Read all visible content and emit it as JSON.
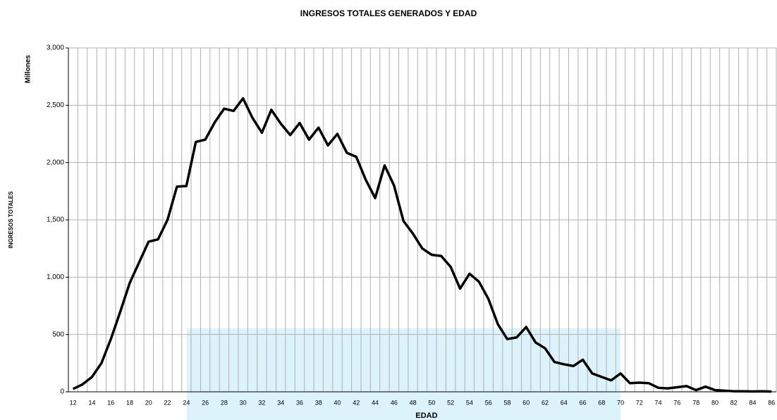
{
  "chart_data": {
    "type": "line",
    "title": "INGRESOS TOTALES GENERADOS Y EDAD",
    "y_axis_label": "INGRESOS TOTALES",
    "y_unit_label": "Millones",
    "x_axis_label": "EDAD",
    "categories": [
      "12",
      null,
      "14",
      null,
      "16",
      null,
      "18",
      null,
      "20",
      null,
      "22",
      null,
      "24",
      null,
      "26",
      null,
      "28",
      null,
      "30",
      null,
      "32",
      null,
      "34",
      null,
      "36",
      null,
      "38",
      null,
      "40",
      null,
      "42",
      null,
      "44",
      null,
      "46",
      null,
      "48",
      null,
      "50",
      null,
      "52",
      null,
      "54",
      null,
      "56",
      null,
      "58",
      null,
      "60",
      null,
      "62",
      null,
      "64",
      null,
      "66",
      null,
      "68",
      null,
      "70",
      null,
      "72",
      null,
      "74",
      null,
      "76",
      null,
      "78",
      null,
      "80",
      null,
      "82",
      null,
      "84",
      null,
      "86"
    ],
    "series": [
      {
        "name": "INGRESOS TOTALES",
        "color": "#000000",
        "values": [
          25,
          65,
          130,
          250,
          460,
          700,
          950,
          1130,
          1310,
          1330,
          1500,
          1790,
          1795,
          2180,
          2200,
          2350,
          2470,
          2450,
          2560,
          2390,
          2260,
          2460,
          2340,
          2240,
          2345,
          2200,
          2305,
          2150,
          2250,
          2085,
          2050,
          1850,
          1690,
          1975,
          1800,
          1490,
          1380,
          1250,
          1195,
          1185,
          1090,
          900,
          1030,
          960,
          810,
          590,
          460,
          475,
          565,
          430,
          380,
          260,
          240,
          225,
          280,
          160,
          130,
          100,
          160,
          75,
          80,
          75,
          35,
          30,
          40,
          50,
          15,
          45,
          15,
          10,
          5,
          5,
          3,
          5,
          2
        ]
      }
    ],
    "ylim": [
      0,
      3000
    ],
    "yticks": [
      0,
      {
        "value": 500,
        "label": "500"
      },
      {
        "value": 1000,
        "label": "1,000"
      },
      {
        "value": 1500,
        "label": "1,500"
      },
      {
        "value": 2000,
        "label": "2,000"
      },
      {
        "value": 2500,
        "label": "2,500"
      },
      {
        "value": 3000,
        "label": "3,000"
      }
    ],
    "grid": true
  }
}
